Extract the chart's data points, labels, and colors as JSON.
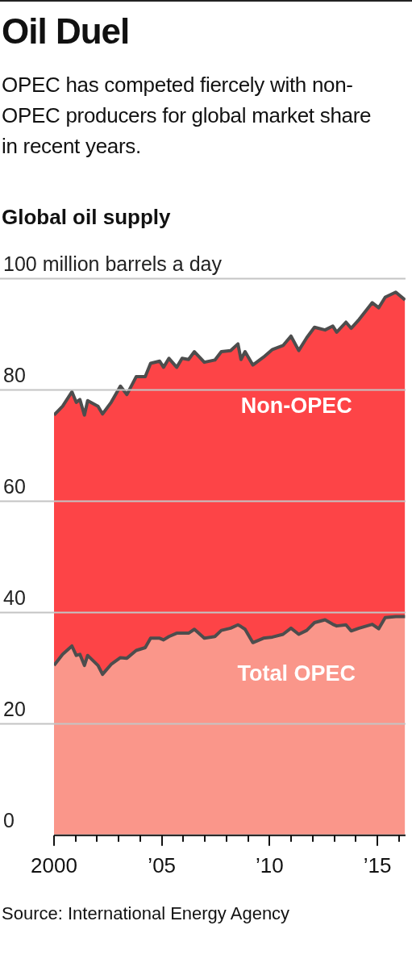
{
  "chart_data": {
    "type": "area",
    "title": "Oil Duel",
    "subtitle": "OPEC has competed fiercely with non-OPEC producers for global market share in recent years.",
    "ylabel": "Global oil supply",
    "annotations": [
      "Source: International Energy Agency"
    ],
    "stacked": true,
    "grid": "y",
    "x": [
      2000.0,
      2000.4,
      2000.83,
      2001.03,
      2001.2,
      2001.41,
      2001.56,
      2002.04,
      2002.25,
      2002.65,
      2003.08,
      2003.38,
      2003.81,
      2004.23,
      2004.48,
      2004.9,
      2005.08,
      2005.33,
      2005.69,
      2005.94,
      2006.24,
      2006.51,
      2006.97,
      2007.46,
      2007.76,
      2008.19,
      2008.53,
      2008.67,
      2008.86,
      2009.22,
      2009.71,
      2010.13,
      2010.62,
      2010.99,
      2011.35,
      2011.72,
      2012.08,
      2012.57,
      2012.93,
      2013.11,
      2013.54,
      2013.78,
      2014.15,
      2014.76,
      2015.06,
      2015.36,
      2015.85,
      2016.28
    ],
    "series": [
      {
        "name": "Total OPEC",
        "color": "#fa968a",
        "values": [
          30.4,
          32.4,
          33.9,
          32.2,
          32.4,
          30.4,
          32.2,
          30.4,
          28.8,
          30.6,
          31.8,
          31.7,
          33.1,
          33.6,
          35.3,
          35.3,
          35.0,
          35.6,
          36.2,
          36.2,
          36.2,
          36.9,
          35.3,
          35.6,
          36.7,
          37.1,
          37.7,
          37.4,
          36.9,
          34.5,
          35.3,
          35.5,
          36.0,
          37.1,
          36.0,
          36.7,
          38.1,
          38.6,
          37.8,
          37.5,
          37.7,
          36.6,
          37.1,
          37.8,
          37.0,
          39.0,
          39.2,
          39.2
        ]
      },
      {
        "name": "Non-OPEC",
        "color": "#fd4447",
        "values": [
          45.0,
          44.6,
          45.7,
          45.5,
          45.8,
          45.0,
          45.8,
          46.6,
          46.8,
          47.1,
          48.8,
          47.4,
          49.2,
          48.7,
          49.4,
          49.8,
          49.0,
          50.0,
          47.8,
          49.4,
          49.2,
          49.9,
          49.6,
          49.7,
          50.1,
          49.9,
          50.5,
          48.0,
          49.9,
          49.9,
          50.5,
          51.7,
          51.9,
          52.5,
          51.0,
          52.6,
          53.1,
          52.1,
          53.6,
          52.8,
          54.4,
          54.4,
          55.5,
          57.8,
          57.7,
          57.6,
          58.3,
          56.9
        ]
      }
    ],
    "xlim": [
      2000,
      2016.3
    ],
    "xticks": [
      {
        "value": 2000,
        "label": "2000"
      },
      {
        "value": 2001,
        "label": null
      },
      {
        "value": 2002,
        "label": null
      },
      {
        "value": 2003,
        "label": null
      },
      {
        "value": 2004,
        "label": null
      },
      {
        "value": 2005,
        "label": "’05"
      },
      {
        "value": 2006,
        "label": null
      },
      {
        "value": 2007,
        "label": null
      },
      {
        "value": 2008,
        "label": null
      },
      {
        "value": 2009,
        "label": null
      },
      {
        "value": 2010,
        "label": "’10"
      },
      {
        "value": 2011,
        "label": null
      },
      {
        "value": 2012,
        "label": null
      },
      {
        "value": 2013,
        "label": null
      },
      {
        "value": 2014,
        "label": null
      },
      {
        "value": 2015,
        "label": "’15"
      },
      {
        "value": 2016,
        "label": null
      }
    ],
    "ylim": [
      0,
      100
    ],
    "yticks": [
      0,
      20,
      40,
      60,
      80,
      {
        "value": 100,
        "label": "100 million barrels a day"
      }
    ]
  }
}
